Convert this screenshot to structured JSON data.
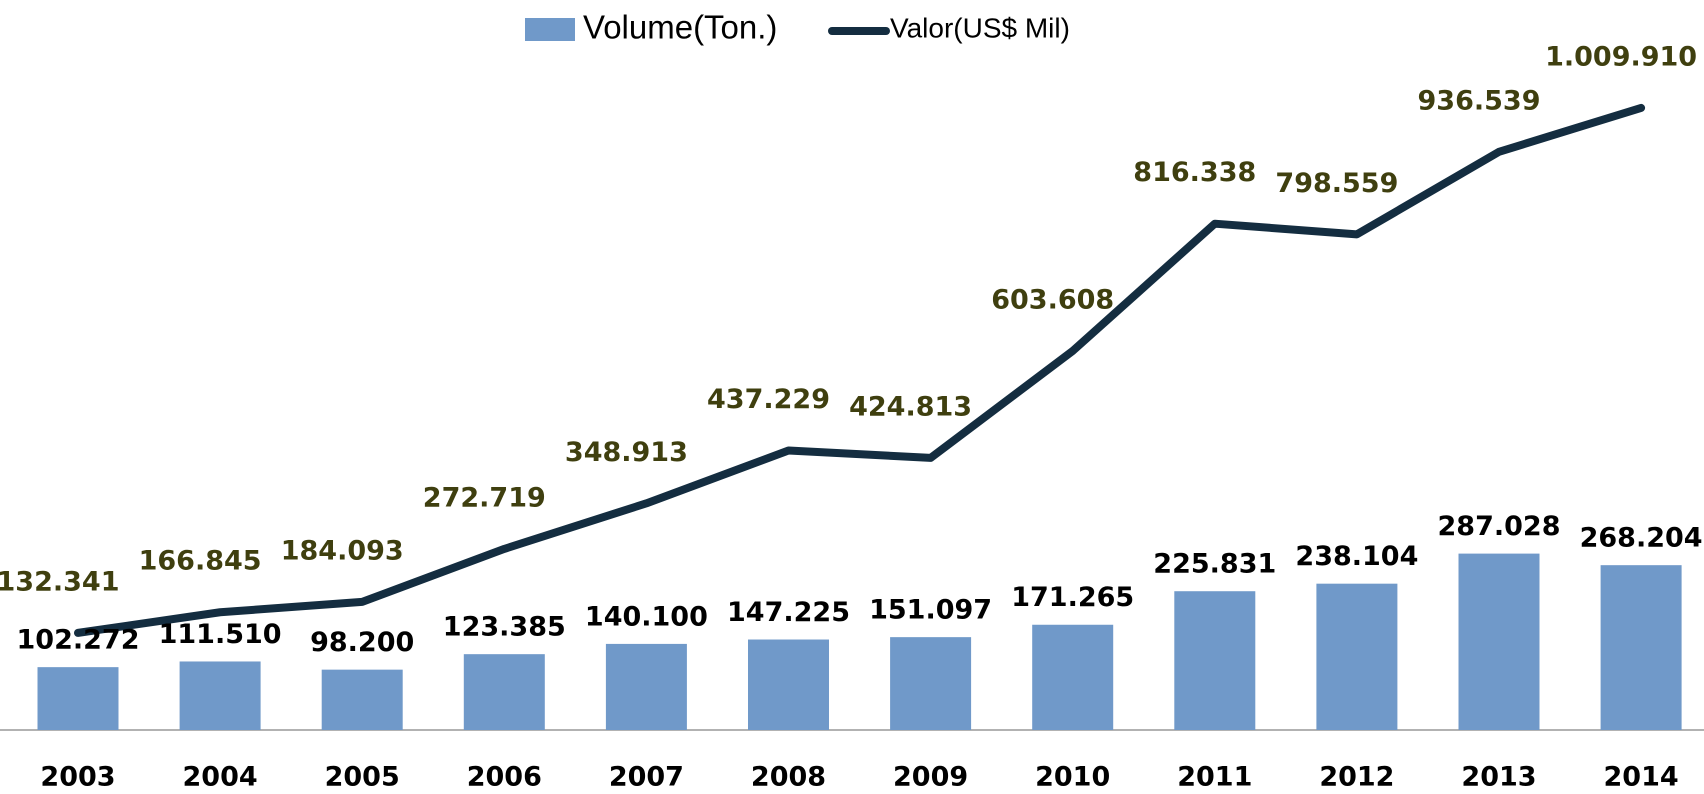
{
  "chart_data": {
    "type": "bar_line",
    "categories": [
      "2003",
      "2004",
      "2005",
      "2006",
      "2007",
      "2008",
      "2009",
      "2010",
      "2011",
      "2012",
      "2013",
      "2014"
    ],
    "series": [
      {
        "name": "Volume(Ton.)",
        "type": "bar",
        "color": "#7099c9",
        "values": [
          102272,
          111510,
          98200,
          123385,
          140100,
          147225,
          151097,
          171265,
          225831,
          238104,
          287028,
          268204
        ],
        "value_labels": [
          "102.272",
          "111.510",
          "98.200",
          "123.385",
          "140.100",
          "147.225",
          "151.097",
          "171.265",
          "225.831",
          "238.104",
          "287.028",
          "268.204"
        ]
      },
      {
        "name": "Valor(US$ Mil)",
        "type": "line",
        "axis": "y2",
        "color": "#142d40",
        "values": [
          132341,
          166845,
          184093,
          272719,
          348913,
          437229,
          424813,
          603608,
          816338,
          798559,
          936539,
          1009910
        ],
        "value_labels": [
          "132.341",
          "166.845",
          "184.093",
          "272.719",
          "348.913",
          "437.229",
          "424.813",
          "603.608",
          "816.338",
          "798.559",
          "936.539",
          "1.009.910"
        ]
      }
    ],
    "ylim": [
      0,
      1100000
    ],
    "y2lim": [
      -30000,
      1100000
    ],
    "legend": "top"
  }
}
